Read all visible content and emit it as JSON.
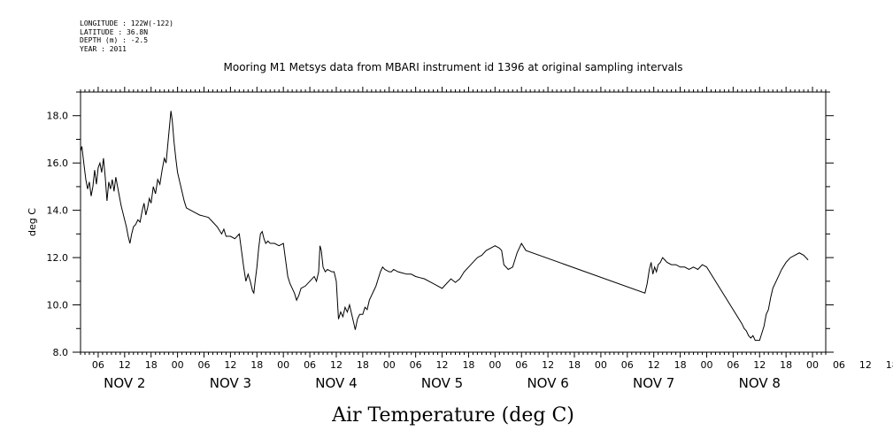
{
  "meta": {
    "longitude": "LONGITUDE : 122W(-122)",
    "latitude": "LATITUDE : 36.8N",
    "depth": "DEPTH (m) : -2.5",
    "year": "YEAR : 2011"
  },
  "chart_data": {
    "type": "line",
    "title": "Mooring M1 Metsys data from MBARI instrument id 1396 at original sampling intervals",
    "xlabel": "Air Temperature (deg C)",
    "ylabel": "deg C",
    "ylim": [
      8.0,
      19.0
    ],
    "xlim_hours": [
      2.0,
      171.0
    ],
    "y_ticks": [
      "8.0",
      "10.0",
      "12.0",
      "14.0",
      "16.0",
      "18.0"
    ],
    "x_hour_ticks": [
      "06",
      "12",
      "18",
      "00",
      "06",
      "12",
      "18",
      "00",
      "06",
      "12",
      "18",
      "00",
      "06",
      "12",
      "18",
      "00",
      "06",
      "12",
      "18",
      "00",
      "06",
      "12",
      "18",
      "00",
      "06",
      "12",
      "18",
      "00",
      "06",
      "12",
      "18",
      "00"
    ],
    "x_date_labels": [
      "NOV  2",
      "NOV  3",
      "NOV  4",
      "NOV  5",
      "NOV  6",
      "NOV  7",
      "NOV  8"
    ],
    "series": [
      {
        "values": [
          [
            2.0,
            16.5
          ],
          [
            2.3,
            16.7
          ],
          [
            2.8,
            15.9
          ],
          [
            3.2,
            15.3
          ],
          [
            3.6,
            14.9
          ],
          [
            4.0,
            15.2
          ],
          [
            4.4,
            14.6
          ],
          [
            4.8,
            15.0
          ],
          [
            5.2,
            15.7
          ],
          [
            5.6,
            15.1
          ],
          [
            6.0,
            15.8
          ],
          [
            6.4,
            16.0
          ],
          [
            6.8,
            15.6
          ],
          [
            7.2,
            16.2
          ],
          [
            7.6,
            15.4
          ],
          [
            8.0,
            14.4
          ],
          [
            8.4,
            15.2
          ],
          [
            8.8,
            14.9
          ],
          [
            9.2,
            15.3
          ],
          [
            9.6,
            14.8
          ],
          [
            10.0,
            15.4
          ],
          [
            10.4,
            15.0
          ],
          [
            10.8,
            14.6
          ],
          [
            11.2,
            14.2
          ],
          [
            11.6,
            13.9
          ],
          [
            12.0,
            13.6
          ],
          [
            12.4,
            13.3
          ],
          [
            12.8,
            12.9
          ],
          [
            13.2,
            12.6
          ],
          [
            13.6,
            13.0
          ],
          [
            14.0,
            13.3
          ],
          [
            14.5,
            13.4
          ],
          [
            15.0,
            13.6
          ],
          [
            15.5,
            13.5
          ],
          [
            16.0,
            14.0
          ],
          [
            16.4,
            14.3
          ],
          [
            16.8,
            13.8
          ],
          [
            17.2,
            14.1
          ],
          [
            17.6,
            14.5
          ],
          [
            18.0,
            14.3
          ],
          [
            18.5,
            15.0
          ],
          [
            19.0,
            14.7
          ],
          [
            19.5,
            15.3
          ],
          [
            20.0,
            15.1
          ],
          [
            20.5,
            15.7
          ],
          [
            21.0,
            16.2
          ],
          [
            21.4,
            16.0
          ],
          [
            21.8,
            16.8
          ],
          [
            22.2,
            17.6
          ],
          [
            22.5,
            18.2
          ],
          [
            22.8,
            17.8
          ],
          [
            23.2,
            16.9
          ],
          [
            23.6,
            16.2
          ],
          [
            24.0,
            15.6
          ],
          [
            24.5,
            15.2
          ],
          [
            25.0,
            14.8
          ],
          [
            25.5,
            14.4
          ],
          [
            26.0,
            14.1
          ],
          [
            27.0,
            14.0
          ],
          [
            28.0,
            13.9
          ],
          [
            29.0,
            13.8
          ],
          [
            30.0,
            13.75
          ],
          [
            31.0,
            13.7
          ],
          [
            32.0,
            13.5
          ],
          [
            33.0,
            13.3
          ],
          [
            34.0,
            13.0
          ],
          [
            34.5,
            13.2
          ],
          [
            35.0,
            12.9
          ],
          [
            36.0,
            12.9
          ],
          [
            37.0,
            12.8
          ],
          [
            38.0,
            13.0
          ],
          [
            38.5,
            12.3
          ],
          [
            39.0,
            11.6
          ],
          [
            39.5,
            11.0
          ],
          [
            40.0,
            11.3
          ],
          [
            40.5,
            11.0
          ],
          [
            41.0,
            10.6
          ],
          [
            41.3,
            10.5
          ],
          [
            41.6,
            11.0
          ],
          [
            42.0,
            11.6
          ],
          [
            42.4,
            12.4
          ],
          [
            42.8,
            13.0
          ],
          [
            43.2,
            13.1
          ],
          [
            43.6,
            12.8
          ],
          [
            44.0,
            12.6
          ],
          [
            44.5,
            12.7
          ],
          [
            45.0,
            12.6
          ],
          [
            46.0,
            12.6
          ],
          [
            47.0,
            12.5
          ],
          [
            48.0,
            12.6
          ],
          [
            48.5,
            11.9
          ],
          [
            49.0,
            11.2
          ],
          [
            49.5,
            10.9
          ],
          [
            50.0,
            10.7
          ],
          [
            50.5,
            10.5
          ],
          [
            51.0,
            10.2
          ],
          [
            51.5,
            10.4
          ],
          [
            52.0,
            10.7
          ],
          [
            53.0,
            10.8
          ],
          [
            54.0,
            11.0
          ],
          [
            55.0,
            11.2
          ],
          [
            55.5,
            11.0
          ],
          [
            56.0,
            11.4
          ],
          [
            56.3,
            12.5
          ],
          [
            56.6,
            12.3
          ],
          [
            57.0,
            11.6
          ],
          [
            57.5,
            11.4
          ],
          [
            58.0,
            11.5
          ],
          [
            59.0,
            11.4
          ],
          [
            59.5,
            11.4
          ],
          [
            60.0,
            11.0
          ],
          [
            60.5,
            9.4
          ],
          [
            61.0,
            9.7
          ],
          [
            61.5,
            9.5
          ],
          [
            62.0,
            9.9
          ],
          [
            62.5,
            9.7
          ],
          [
            63.0,
            10.0
          ],
          [
            63.5,
            9.6
          ],
          [
            64.0,
            9.2
          ],
          [
            64.3,
            8.95
          ],
          [
            64.8,
            9.4
          ],
          [
            65.3,
            9.6
          ],
          [
            66.0,
            9.6
          ],
          [
            66.5,
            9.9
          ],
          [
            67.0,
            9.8
          ],
          [
            67.5,
            10.2
          ],
          [
            68.0,
            10.4
          ],
          [
            68.5,
            10.6
          ],
          [
            69.0,
            10.8
          ],
          [
            69.5,
            11.1
          ],
          [
            70.0,
            11.4
          ],
          [
            70.5,
            11.6
          ],
          [
            71.0,
            11.5
          ],
          [
            72.0,
            11.4
          ],
          [
            72.5,
            11.4
          ],
          [
            73.0,
            11.5
          ],
          [
            74.0,
            11.4
          ],
          [
            75.0,
            11.35
          ],
          [
            76.0,
            11.3
          ],
          [
            77.0,
            11.3
          ],
          [
            78.0,
            11.2
          ],
          [
            79.0,
            11.15
          ],
          [
            80.0,
            11.1
          ],
          [
            81.0,
            11.0
          ],
          [
            82.0,
            10.9
          ],
          [
            83.0,
            10.8
          ],
          [
            84.0,
            10.7
          ],
          [
            85.0,
            10.9
          ],
          [
            86.0,
            11.1
          ],
          [
            87.0,
            10.95
          ],
          [
            88.0,
            11.1
          ],
          [
            89.0,
            11.4
          ],
          [
            90.0,
            11.6
          ],
          [
            91.0,
            11.8
          ],
          [
            92.0,
            12.0
          ],
          [
            93.0,
            12.1
          ],
          [
            94.0,
            12.3
          ],
          [
            95.0,
            12.4
          ],
          [
            96.0,
            12.5
          ],
          [
            97.0,
            12.4
          ],
          [
            97.5,
            12.3
          ],
          [
            98.0,
            11.7
          ],
          [
            99.0,
            11.5
          ],
          [
            100.0,
            11.6
          ],
          [
            101.0,
            12.2
          ],
          [
            101.5,
            12.4
          ],
          [
            102.0,
            12.6
          ],
          [
            103.0,
            12.3
          ],
          [
            130.0,
            10.5
          ],
          [
            130.5,
            10.9
          ],
          [
            131.0,
            11.5
          ],
          [
            131.4,
            11.8
          ],
          [
            131.8,
            11.3
          ],
          [
            132.2,
            11.6
          ],
          [
            132.6,
            11.4
          ],
          [
            133.0,
            11.7
          ],
          [
            133.5,
            11.8
          ],
          [
            134.0,
            12.0
          ],
          [
            134.5,
            11.9
          ],
          [
            135.0,
            11.8
          ],
          [
            136.0,
            11.7
          ],
          [
            137.0,
            11.7
          ],
          [
            138.0,
            11.6
          ],
          [
            139.0,
            11.6
          ],
          [
            140.0,
            11.5
          ],
          [
            141.0,
            11.6
          ],
          [
            142.0,
            11.5
          ],
          [
            143.0,
            11.7
          ],
          [
            144.0,
            11.6
          ],
          [
            152.0,
            9.2
          ],
          [
            152.5,
            9.0
          ],
          [
            153.0,
            8.9
          ],
          [
            153.5,
            8.7
          ],
          [
            154.0,
            8.6
          ],
          [
            154.5,
            8.7
          ],
          [
            155.0,
            8.5
          ],
          [
            156.0,
            8.5
          ],
          [
            156.5,
            8.8
          ],
          [
            157.0,
            9.1
          ],
          [
            157.5,
            9.6
          ],
          [
            158.0,
            9.8
          ],
          [
            158.5,
            10.3
          ],
          [
            159.0,
            10.7
          ],
          [
            160.0,
            11.1
          ],
          [
            161.0,
            11.5
          ],
          [
            162.0,
            11.8
          ],
          [
            163.0,
            12.0
          ],
          [
            164.0,
            12.1
          ],
          [
            165.0,
            12.2
          ],
          [
            166.0,
            12.1
          ],
          [
            166.5,
            12.0
          ],
          [
            167.0,
            11.9
          ]
        ]
      }
    ]
  }
}
